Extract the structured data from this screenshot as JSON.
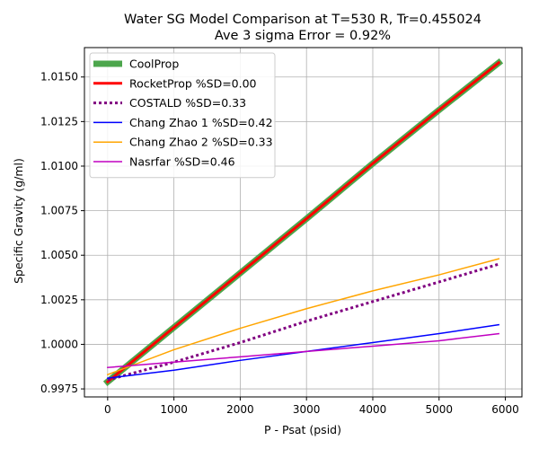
{
  "chart_data": {
    "type": "line",
    "title": "Water SG Model Comparison at T=530 R, Tr=0.455024",
    "subtitle": "Ave 3 sigma Error = 0.92%",
    "xlabel": "P - Psat (psid)",
    "ylabel": "Specific Gravity (g/ml)",
    "xlim": [
      -350,
      6250
    ],
    "ylim": [
      0.99705,
      1.01665
    ],
    "xticks": [
      0,
      1000,
      2000,
      3000,
      4000,
      5000,
      6000
    ],
    "xtick_labels": [
      "0",
      "1000",
      "2000",
      "3000",
      "4000",
      "5000",
      "6000"
    ],
    "yticks": [
      0.9975,
      1.0,
      1.0025,
      1.005,
      1.0075,
      1.01,
      1.0125,
      1.015
    ],
    "ytick_labels": [
      "0.9975",
      "1.0000",
      "1.0025",
      "1.0050",
      "1.0075",
      "1.0100",
      "1.0125",
      "1.0150"
    ],
    "grid": true,
    "legend_position": "top-left",
    "series": [
      {
        "name": "CoolProp",
        "color": "#4ca64c",
        "width": 7,
        "dash": "solid",
        "x": [
          0,
          1000,
          2000,
          3000,
          4000,
          5000,
          5900
        ],
        "y": [
          0.9979,
          1.00095,
          1.004,
          1.00705,
          1.01015,
          1.01315,
          1.0158
        ]
      },
      {
        "name": "RocketProp %SD=0.00",
        "color": "#ff0000",
        "width": 3,
        "dash": "solid",
        "x": [
          0,
          1000,
          2000,
          3000,
          4000,
          5000,
          5900
        ],
        "y": [
          0.9979,
          1.00095,
          1.004,
          1.00705,
          1.01015,
          1.01315,
          1.0158
        ]
      },
      {
        "name": "COSTALD %SD=0.33",
        "color": "#800080",
        "width": 3,
        "dash": "dotted",
        "x": [
          0,
          1000,
          2000,
          3000,
          4000,
          5000,
          5900
        ],
        "y": [
          0.998,
          0.999,
          1.0001,
          1.0013,
          1.0024,
          1.0035,
          1.0045
        ]
      },
      {
        "name": "Chang Zhao 1 %SD=0.42",
        "color": "#0000ff",
        "width": 1.5,
        "dash": "solid",
        "x": [
          0,
          1000,
          2000,
          3000,
          4000,
          5000,
          5900
        ],
        "y": [
          0.9981,
          0.99855,
          0.9991,
          0.9996,
          1.0001,
          1.0006,
          1.0011
        ]
      },
      {
        "name": "Chang Zhao 2 %SD=0.33",
        "color": "#ffa500",
        "width": 1.5,
        "dash": "solid",
        "x": [
          0,
          1000,
          2000,
          3000,
          4000,
          5000,
          5900
        ],
        "y": [
          0.9983,
          0.9997,
          1.0009,
          1.002,
          1.003,
          1.0039,
          1.0048
        ]
      },
      {
        "name": "Nasrfar %SD=0.46",
        "color": "#c000c0",
        "width": 1.5,
        "dash": "solid",
        "x": [
          0,
          1000,
          2000,
          3000,
          4000,
          5000,
          5900
        ],
        "y": [
          0.9987,
          0.999,
          0.9993,
          0.9996,
          0.9999,
          1.0002,
          1.0006
        ]
      }
    ]
  }
}
